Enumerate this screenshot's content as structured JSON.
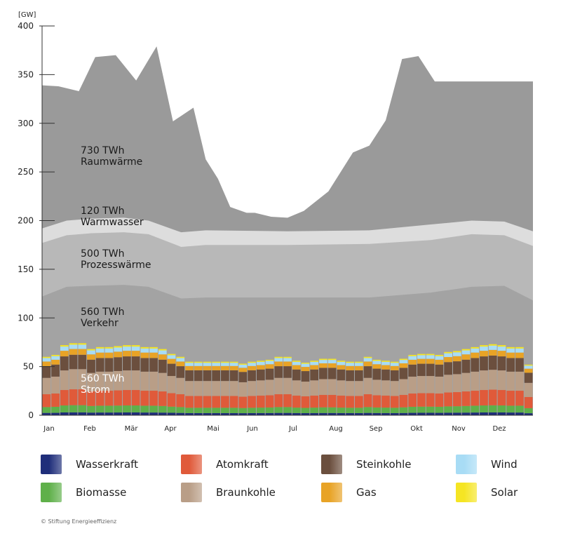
{
  "chart_data": {
    "type": "area",
    "y_unit": "[GW]",
    "ylim": [
      0,
      400
    ],
    "y_ticks": [
      0,
      50,
      100,
      150,
      200,
      250,
      300,
      350,
      400
    ],
    "months": [
      "Jan",
      "Feb",
      "Mär",
      "Apr",
      "Mai",
      "Jun",
      "Jul",
      "Aug",
      "Sep",
      "Okt",
      "Nov",
      "Dez"
    ],
    "areas": [
      {
        "name": "Raumwärme",
        "annotation": [
          "730 TWh",
          "Raumwärme"
        ],
        "color": "#9a9a9a",
        "x": [
          0,
          0.4,
          0.9,
          1.3,
          1.8,
          2.3,
          2.8,
          3.2,
          3.7,
          4.0,
          4.3,
          4.6,
          5.0,
          5.2,
          5.6,
          6.0,
          6.4,
          7.0,
          7.6,
          8.0,
          8.4,
          8.8,
          9.2,
          9.6,
          10.0,
          10.4,
          10.9,
          11.3,
          11.8,
          12
        ],
        "top": [
          339,
          338,
          333,
          368,
          370,
          344,
          379,
          302,
          316,
          263,
          243,
          214,
          208,
          208,
          204,
          203,
          210,
          230,
          270,
          277,
          303,
          366,
          369,
          343,
          343,
          343,
          343,
          343,
          343,
          343
        ]
      },
      {
        "name": "Warmwasser",
        "annotation": [
          "120 TWh",
          "Warmwasser"
        ],
        "color": "#dddddd",
        "x": [
          0,
          0.6,
          1.2,
          2.0,
          2.6,
          3.4,
          4.0,
          6.0,
          8.0,
          9.5,
          10.5,
          11.3,
          12
        ],
        "top": [
          192,
          200,
          202,
          203,
          200,
          188,
          190,
          189,
          190,
          196,
          200,
          199,
          189
        ]
      },
      {
        "name": "Prozesswärme",
        "annotation": [
          "500 TWh",
          "Prozesswärme"
        ],
        "color": "#b8b8b8",
        "x": [
          0,
          0.6,
          1.2,
          2.0,
          2.6,
          3.4,
          4.0,
          6.0,
          8.0,
          9.5,
          10.5,
          11.3,
          12
        ],
        "top": [
          177,
          185,
          187,
          188,
          186,
          173,
          175,
          175,
          176,
          180,
          186,
          185,
          174
        ]
      },
      {
        "name": "Verkehr",
        "annotation": [
          "560 TWh",
          "Verkehr"
        ],
        "color": "#a3a3a3",
        "x": [
          0,
          0.6,
          1.2,
          2.0,
          2.6,
          3.4,
          4.0,
          6.0,
          8.0,
          9.5,
          10.5,
          11.3,
          12
        ],
        "top": [
          122,
          132,
          133,
          134,
          132,
          120,
          121,
          121,
          121,
          126,
          132,
          133,
          118
        ]
      }
    ],
    "strom": {
      "name": "Strom",
      "annotation": [
        "560 TWh",
        "Strom"
      ],
      "totals": [
        60,
        62,
        72,
        74,
        74,
        68,
        70,
        70,
        71,
        72,
        72,
        70,
        70,
        68,
        63,
        60,
        55,
        55,
        55,
        55,
        55,
        55,
        53,
        55,
        56,
        57,
        60,
        60,
        56,
        54,
        56,
        58,
        58,
        56,
        55,
        55,
        60,
        57,
        56,
        55,
        58,
        62,
        63,
        63,
        62,
        65,
        66,
        68,
        70,
        72,
        73,
        72,
        70,
        70,
        52
      ],
      "components": [
        {
          "name": "Wasserkraft",
          "color": "#1f2e7a",
          "share": 0.04
        },
        {
          "name": "Biomasse",
          "color": "#5fb04a",
          "share": 0.1
        },
        {
          "name": "Atomkraft",
          "color": "#e05a3a",
          "share": 0.22
        },
        {
          "name": "Braunkohle",
          "color": "#b99e87",
          "share": 0.28
        },
        {
          "name": "Steinkohle",
          "color": "#6b4f3e",
          "share": 0.2
        },
        {
          "name": "Gas",
          "color": "#e8a326",
          "share": 0.08
        },
        {
          "name": "Wind",
          "color": "#a8dcf5",
          "share": 0.06
        },
        {
          "name": "Solar",
          "color": "#f5e523",
          "share": 0.02
        }
      ]
    }
  },
  "legend": [
    {
      "label": "Wasserkraft",
      "color": "#1f2e7a"
    },
    {
      "label": "Atomkraft",
      "color": "#e05a3a"
    },
    {
      "label": "Steinkohle",
      "color": "#6b4f3e"
    },
    {
      "label": "Wind",
      "color": "#a8dcf5"
    },
    {
      "label": "Biomasse",
      "color": "#5fb04a"
    },
    {
      "label": "Braunkohle",
      "color": "#b99e87"
    },
    {
      "label": "Gas",
      "color": "#e8a326"
    },
    {
      "label": "Solar",
      "color": "#f5e523"
    }
  ],
  "credit": "© Stiftung Energieeffizienz"
}
